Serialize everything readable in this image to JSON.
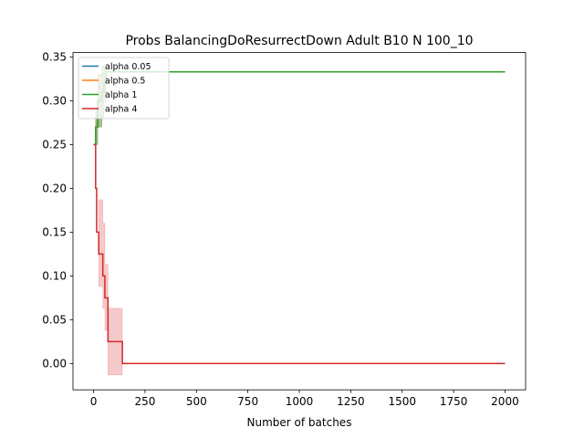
{
  "chart_data": {
    "type": "line",
    "title": "Probs BalancingDoResurrectDown Adult B10 N 100_10",
    "xlabel": "Number of batches",
    "ylabel": "",
    "xlim": [
      -100,
      2100
    ],
    "ylim": [
      -0.03,
      0.355
    ],
    "xticks": [
      0,
      250,
      500,
      750,
      1000,
      1250,
      1500,
      1750,
      2000
    ],
    "yticks": [
      0.0,
      0.05,
      0.1,
      0.15,
      0.2,
      0.25,
      0.3,
      0.35
    ],
    "grid": false,
    "legend": "top-left",
    "series": [
      {
        "name": "alpha 0.05",
        "color": "#1f77b4",
        "x": [
          0,
          10,
          20,
          30,
          40,
          50,
          60,
          70,
          80,
          2000
        ],
        "y": [
          0.25,
          0.27,
          0.3,
          0.3,
          0.31,
          0.32,
          0.333,
          0.333,
          0.333,
          0.333
        ],
        "band_low": [
          0.25,
          0.25,
          0.27,
          0.27,
          0.28,
          0.3,
          0.333,
          0.333,
          0.333,
          0.333
        ],
        "band_high": [
          0.25,
          0.29,
          0.33,
          0.33,
          0.34,
          0.34,
          0.333,
          0.333,
          0.333,
          0.333
        ]
      },
      {
        "name": "alpha 0.5",
        "color": "#ff7f0e",
        "x": [
          0,
          10,
          20,
          30,
          40,
          50,
          60,
          70,
          80,
          2000
        ],
        "y": [
          0.25,
          0.27,
          0.3,
          0.3,
          0.31,
          0.32,
          0.333,
          0.333,
          0.333,
          0.333
        ],
        "band_low": [
          0.25,
          0.25,
          0.27,
          0.27,
          0.28,
          0.3,
          0.333,
          0.333,
          0.333,
          0.333
        ],
        "band_high": [
          0.25,
          0.29,
          0.33,
          0.33,
          0.34,
          0.34,
          0.333,
          0.333,
          0.333,
          0.333
        ]
      },
      {
        "name": "alpha 1",
        "color": "#2ca02c",
        "x": [
          0,
          10,
          20,
          30,
          40,
          50,
          60,
          70,
          80,
          2000
        ],
        "y": [
          0.25,
          0.27,
          0.3,
          0.3,
          0.31,
          0.32,
          0.333,
          0.333,
          0.333,
          0.333
        ],
        "band_low": [
          0.25,
          0.25,
          0.27,
          0.27,
          0.28,
          0.3,
          0.333,
          0.333,
          0.333,
          0.333
        ],
        "band_high": [
          0.25,
          0.29,
          0.33,
          0.33,
          0.34,
          0.34,
          0.333,
          0.333,
          0.333,
          0.333
        ]
      },
      {
        "name": "alpha 4",
        "color": "#d62728",
        "x": [
          0,
          10,
          15,
          25,
          45,
          55,
          70,
          130,
          140,
          2000
        ],
        "y": [
          0.25,
          0.2,
          0.15,
          0.125,
          0.1,
          0.075,
          0.025,
          0.025,
          0.0,
          0.0
        ],
        "band_low": [
          0.25,
          0.2,
          0.15,
          0.088,
          0.063,
          0.038,
          -0.013,
          -0.013,
          0.0,
          0.0
        ],
        "band_high": [
          0.25,
          0.2,
          0.15,
          0.187,
          0.16,
          0.113,
          0.063,
          0.063,
          0.0,
          0.0
        ]
      }
    ]
  }
}
